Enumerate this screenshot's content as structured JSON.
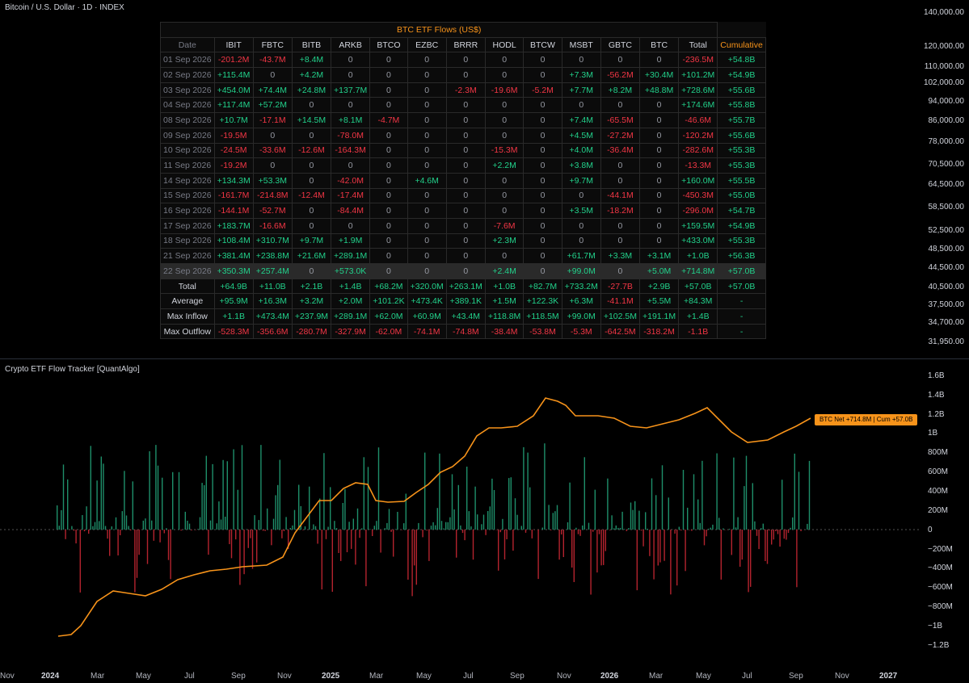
{
  "header": {
    "title": "Bitcoin / U.S. Dollar · 1D · INDEX"
  },
  "price_axis": [
    "140,000.00",
    "120,000.00",
    "110,000.00",
    "102,000.00",
    "94,000.00",
    "86,000.00",
    "78,000.00",
    "70,500.00",
    "64,500.00",
    "58,500.00",
    "52,500.00",
    "48,500.00",
    "44,500.00",
    "40,500.00",
    "37,500.00",
    "34,700.00",
    "31,950.00"
  ],
  "table": {
    "title": "BTC ETF Flows (US$)",
    "columns": [
      "Date",
      "IBIT",
      "FBTC",
      "BITB",
      "ARKB",
      "BTCO",
      "EZBC",
      "BRRR",
      "HODL",
      "BTCW",
      "MSBT",
      "GBTC",
      "BTC",
      "Total",
      "Cumulative"
    ],
    "rows": [
      [
        "01 Sep 2026",
        "-201.2M",
        "-43.7M",
        "+8.4M",
        "0",
        "0",
        "0",
        "0",
        "0",
        "0",
        "0",
        "0",
        "0",
        "-236.5M",
        "+54.8B"
      ],
      [
        "02 Sep 2026",
        "+115.4M",
        "0",
        "+4.2M",
        "0",
        "0",
        "0",
        "0",
        "0",
        "0",
        "+7.3M",
        "-56.2M",
        "+30.4M",
        "+101.2M",
        "+54.9B"
      ],
      [
        "03 Sep 2026",
        "+454.0M",
        "+74.4M",
        "+24.8M",
        "+137.7M",
        "0",
        "0",
        "-2.3M",
        "-19.6M",
        "-5.2M",
        "+7.7M",
        "+8.2M",
        "+48.8M",
        "+728.6M",
        "+55.6B"
      ],
      [
        "04 Sep 2026",
        "+117.4M",
        "+57.2M",
        "0",
        "0",
        "0",
        "0",
        "0",
        "0",
        "0",
        "0",
        "0",
        "0",
        "+174.6M",
        "+55.8B"
      ],
      [
        "08 Sep 2026",
        "+10.7M",
        "-17.1M",
        "+14.5M",
        "+8.1M",
        "-4.7M",
        "0",
        "0",
        "0",
        "0",
        "+7.4M",
        "-65.5M",
        "0",
        "-46.6M",
        "+55.7B"
      ],
      [
        "09 Sep 2026",
        "-19.5M",
        "0",
        "0",
        "-78.0M",
        "0",
        "0",
        "0",
        "0",
        "0",
        "+4.5M",
        "-27.2M",
        "0",
        "-120.2M",
        "+55.6B"
      ],
      [
        "10 Sep 2026",
        "-24.5M",
        "-33.6M",
        "-12.6M",
        "-164.3M",
        "0",
        "0",
        "0",
        "-15.3M",
        "0",
        "+4.0M",
        "-36.4M",
        "0",
        "-282.6M",
        "+55.3B"
      ],
      [
        "11 Sep 2026",
        "-19.2M",
        "0",
        "0",
        "0",
        "0",
        "0",
        "0",
        "+2.2M",
        "0",
        "+3.8M",
        "0",
        "0",
        "-13.3M",
        "+55.3B"
      ],
      [
        "14 Sep 2026",
        "+134.3M",
        "+53.3M",
        "0",
        "-42.0M",
        "0",
        "+4.6M",
        "0",
        "0",
        "0",
        "+9.7M",
        "0",
        "0",
        "+160.0M",
        "+55.5B"
      ],
      [
        "15 Sep 2026",
        "-161.7M",
        "-214.8M",
        "-12.4M",
        "-17.4M",
        "0",
        "0",
        "0",
        "0",
        "0",
        "0",
        "-44.1M",
        "0",
        "-450.3M",
        "+55.0B"
      ],
      [
        "16 Sep 2026",
        "-144.1M",
        "-52.7M",
        "0",
        "-84.4M",
        "0",
        "0",
        "0",
        "0",
        "0",
        "+3.5M",
        "-18.2M",
        "0",
        "-296.0M",
        "+54.7B"
      ],
      [
        "17 Sep 2026",
        "+183.7M",
        "-16.6M",
        "0",
        "0",
        "0",
        "0",
        "0",
        "-7.6M",
        "0",
        "0",
        "0",
        "0",
        "+159.5M",
        "+54.9B"
      ],
      [
        "18 Sep 2026",
        "+108.4M",
        "+310.7M",
        "+9.7M",
        "+1.9M",
        "0",
        "0",
        "0",
        "+2.3M",
        "0",
        "0",
        "0",
        "0",
        "+433.0M",
        "+55.3B"
      ],
      [
        "21 Sep 2026",
        "+381.4M",
        "+238.8M",
        "+21.6M",
        "+289.1M",
        "0",
        "0",
        "0",
        "0",
        "0",
        "+61.7M",
        "+3.3M",
        "+3.1M",
        "+1.0B",
        "+56.3B"
      ],
      [
        "22 Sep 2026",
        "+350.3M",
        "+257.4M",
        "0",
        "+573.0K",
        "0",
        "0",
        "0",
        "+2.4M",
        "0",
        "+99.0M",
        "0",
        "+5.0M",
        "+714.8M",
        "+57.0B"
      ]
    ],
    "summary": [
      [
        "Total",
        "+64.9B",
        "+11.0B",
        "+2.1B",
        "+1.4B",
        "+68.2M",
        "+320.0M",
        "+263.1M",
        "+1.0B",
        "+82.7M",
        "+733.2M",
        "-27.7B",
        "+2.9B",
        "+57.0B",
        "+57.0B"
      ],
      [
        "Average",
        "+95.9M",
        "+16.3M",
        "+3.2M",
        "+2.0M",
        "+101.2K",
        "+473.4K",
        "+389.1K",
        "+1.5M",
        "+122.3K",
        "+6.3M",
        "-41.1M",
        "+5.5M",
        "+84.3M",
        "-"
      ],
      [
        "Max Inflow",
        "+1.1B",
        "+473.4M",
        "+237.9M",
        "+289.1M",
        "+62.0M",
        "+60.9M",
        "+43.4M",
        "+118.8M",
        "+118.5M",
        "+99.0M",
        "+102.5M",
        "+191.1M",
        "+1.4B",
        "-"
      ],
      [
        "Max Outflow",
        "-528.3M",
        "-356.6M",
        "-280.7M",
        "-327.9M",
        "-62.0M",
        "-74.1M",
        "-74.8M",
        "-38.4M",
        "-53.8M",
        "-5.3M",
        "-642.5M",
        "-318.2M",
        "-1.1B",
        "-"
      ]
    ]
  },
  "indicator": {
    "title": "Crypto ETF Flow Tracker [QuantAlgo]",
    "axis": [
      "1.6B",
      "1.4B",
      "1.2B",
      "1B",
      "800M",
      "600M",
      "400M",
      "200M",
      "0",
      "−200M",
      "−400M",
      "−600M",
      "−800M",
      "−1B",
      "−1.2B"
    ],
    "tag": "BTC  Net +714.8M  |  Cum +57.0B",
    "colors": {
      "cumulative": "#f7931a",
      "inflow": "#1e8f6a",
      "outflow": "#b4232e"
    }
  },
  "time_axis": [
    "Nov",
    "2024",
    "Mar",
    "May",
    "Jul",
    "Sep",
    "Nov",
    "2025",
    "Mar",
    "May",
    "Jul",
    "Sep",
    "Nov",
    "2026",
    "Mar",
    "May",
    "Jul",
    "Sep",
    "Nov",
    "2027"
  ]
}
